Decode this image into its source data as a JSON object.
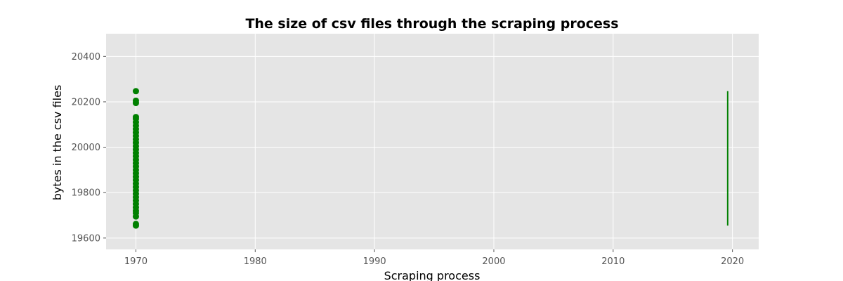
{
  "chart_data": {
    "type": "scatter",
    "title": "The size of csv files through the scraping process",
    "xlabel": "Scraping process",
    "ylabel": "bytes in the csv files",
    "xlim": [
      1967.5,
      2022.2
    ],
    "ylim": [
      19550,
      20500
    ],
    "xticks": [
      "1970",
      "1980",
      "1990",
      "2000",
      "2010",
      "2020"
    ],
    "yticks": [
      "19600",
      "19800",
      "20000",
      "20200",
      "20400"
    ],
    "grid": true,
    "colors": {
      "background": "#e5e5e5",
      "grid": "#ffffff",
      "series": "#008000"
    },
    "series": [
      {
        "type": "scatter",
        "x": 1970,
        "y": [
          19655,
          19662,
          19695,
          19710,
          19720,
          19735,
          19750,
          19765,
          19780,
          19795,
          19810,
          19825,
          19840,
          19855,
          19870,
          19885,
          19900,
          19915,
          19930,
          19945,
          19960,
          19975,
          19990,
          20005,
          20020,
          20035,
          20050,
          20065,
          20080,
          20095,
          20110,
          20125,
          20133,
          20195,
          20205,
          20247
        ]
      },
      {
        "type": "line",
        "x": [
          2019.6,
          2019.6
        ],
        "y": [
          19655,
          20247
        ]
      }
    ]
  }
}
